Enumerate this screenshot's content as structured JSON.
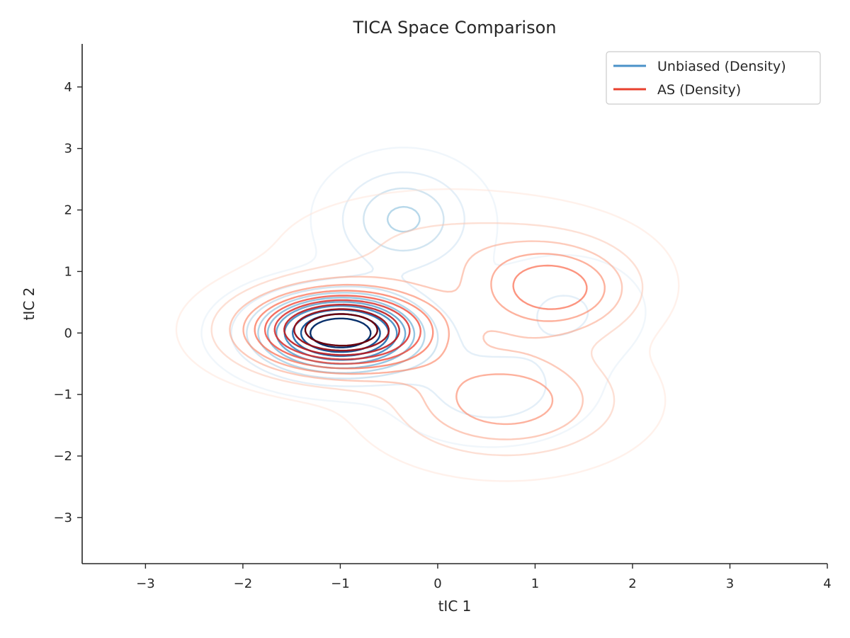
{
  "chart_data": {
    "type": "contour",
    "title": "TICA Space Comparison",
    "xlabel": "tIC 1",
    "ylabel": "tIC 2",
    "xlim": [
      -3.65,
      4.0
    ],
    "ylim": [
      -3.75,
      4.7
    ],
    "xticks": [
      -3,
      -2,
      -1,
      0,
      1,
      2,
      3,
      4
    ],
    "yticks": [
      -3,
      -2,
      -1,
      0,
      1,
      2,
      3,
      4
    ],
    "xtick_labels": [
      "−3",
      "−2",
      "−1",
      "0",
      "1",
      "2",
      "3",
      "4"
    ],
    "ytick_labels": [
      "−3",
      "−2",
      "−1",
      "0",
      "1",
      "2",
      "3",
      "4"
    ],
    "grid": false,
    "legend": {
      "position": "top-right"
    },
    "series": [
      {
        "name": "Unbiased (Density)",
        "color": "#4a92c8",
        "colormap": "Blues",
        "levels": 10,
        "modes": [
          {
            "center": [
              -1.0,
              0.0
            ],
            "spread": [
              0.55,
              0.42
            ],
            "weight": 1.0
          },
          {
            "center": [
              -0.35,
              1.85
            ],
            "spread": [
              0.45,
              0.55
            ],
            "weight": 0.33
          },
          {
            "center": [
              0.55,
              -0.95
            ],
            "spread": [
              0.6,
              0.5
            ],
            "weight": 0.18
          },
          {
            "center": [
              1.3,
              0.35
            ],
            "spread": [
              0.5,
              0.55
            ],
            "weight": 0.14
          }
        ]
      },
      {
        "name": "AS (Density)",
        "color": "#e8402e",
        "colormap": "Reds",
        "levels": 10,
        "modes": [
          {
            "center": [
              -1.0,
              0.05
            ],
            "spread": [
              0.65,
              0.45
            ],
            "weight": 1.0
          },
          {
            "center": [
              1.2,
              0.7
            ],
            "spread": [
              0.55,
              0.5
            ],
            "weight": 0.45
          },
          {
            "center": [
              0.7,
              -1.1
            ],
            "spread": [
              0.75,
              0.6
            ],
            "weight": 0.38
          },
          {
            "center": [
              0.1,
              1.4
            ],
            "spread": [
              1.0,
              0.55
            ],
            "weight": 0.15
          }
        ]
      }
    ]
  }
}
